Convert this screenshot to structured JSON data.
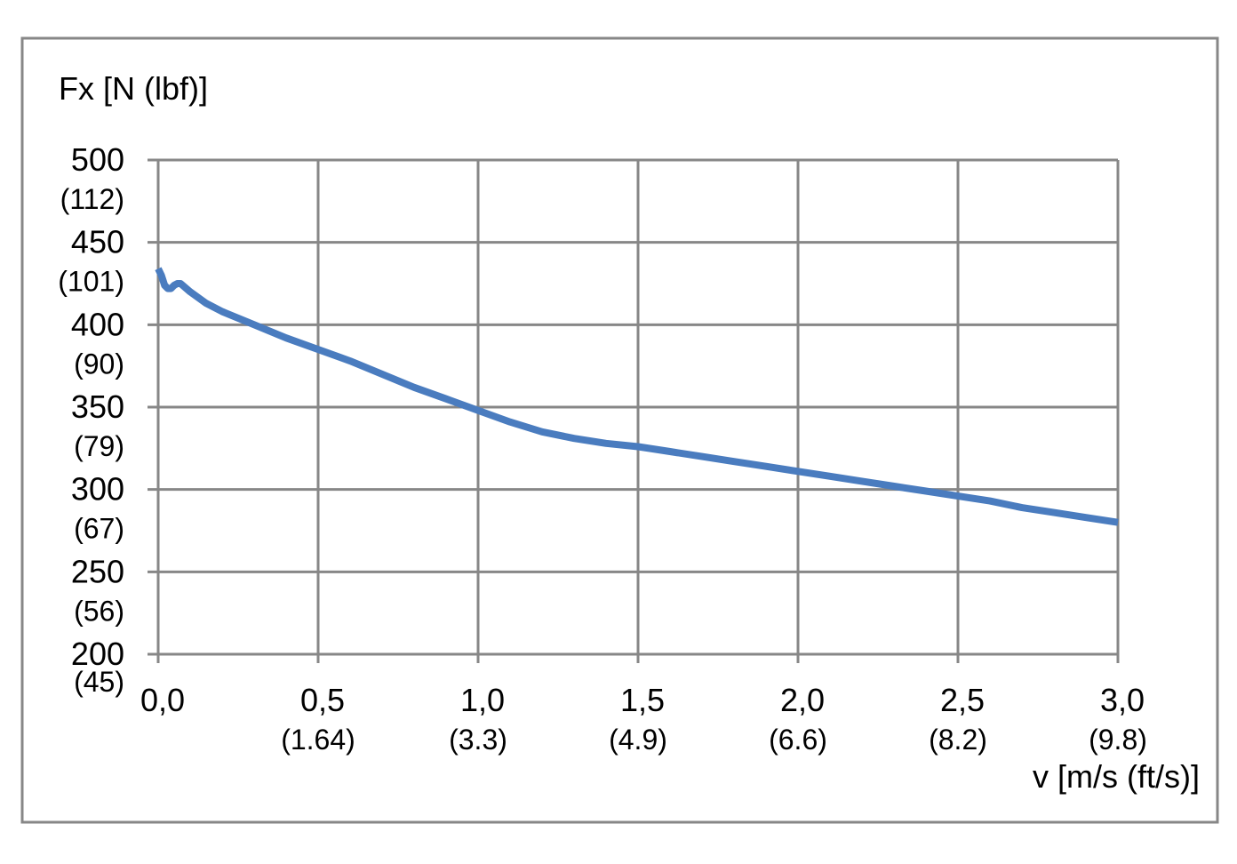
{
  "chart_data": {
    "type": "line",
    "ylabel": "Fx [N (lbf)]",
    "xlabel": "v [m/s (ft/s)]",
    "xlim": [
      0,
      3
    ],
    "ylim": [
      200,
      500
    ],
    "grid": true,
    "x_ticks": [
      {
        "value": 0.0,
        "label": "0,0",
        "sub": ""
      },
      {
        "value": 0.5,
        "label": "0,5",
        "sub": "(1.64)"
      },
      {
        "value": 1.0,
        "label": "1,0",
        "sub": "(3.3)"
      },
      {
        "value": 1.5,
        "label": "1,5",
        "sub": "(4.9)"
      },
      {
        "value": 2.0,
        "label": "2,0",
        "sub": "(6.6)"
      },
      {
        "value": 2.5,
        "label": "2,5",
        "sub": "(8.2)"
      },
      {
        "value": 3.0,
        "label": "3,0",
        "sub": "(9.8)"
      }
    ],
    "y_ticks": [
      {
        "value": 500,
        "label": "500",
        "sub": "(112)"
      },
      {
        "value": 450,
        "label": "450",
        "sub": "(101)"
      },
      {
        "value": 400,
        "label": "400",
        "sub": "(90)"
      },
      {
        "value": 350,
        "label": "350",
        "sub": "(79)"
      },
      {
        "value": 300,
        "label": "300",
        "sub": "(67)"
      },
      {
        "value": 250,
        "label": "250",
        "sub": "(56)"
      },
      {
        "value": 200,
        "label": "200",
        "sub": "(45)"
      }
    ],
    "series": [
      {
        "color": "#4a7cbf",
        "x": [
          0.0,
          0.01,
          0.02,
          0.03,
          0.04,
          0.05,
          0.06,
          0.07,
          0.1,
          0.15,
          0.2,
          0.3,
          0.4,
          0.5,
          0.6,
          0.7,
          0.8,
          0.9,
          1.0,
          1.1,
          1.2,
          1.3,
          1.4,
          1.5,
          1.6,
          1.7,
          1.8,
          1.9,
          2.0,
          2.1,
          2.2,
          2.3,
          2.4,
          2.5,
          2.6,
          2.7,
          2.8,
          2.9,
          3.0
        ],
        "y": [
          434,
          430,
          424,
          422,
          422,
          424,
          425,
          425,
          420,
          413,
          408,
          400,
          392,
          385,
          378,
          370,
          362,
          355,
          348,
          341,
          335,
          331,
          328,
          326,
          323,
          320,
          317,
          314,
          311,
          308,
          305,
          302,
          299,
          296,
          293,
          289,
          286,
          283,
          280
        ]
      }
    ]
  }
}
